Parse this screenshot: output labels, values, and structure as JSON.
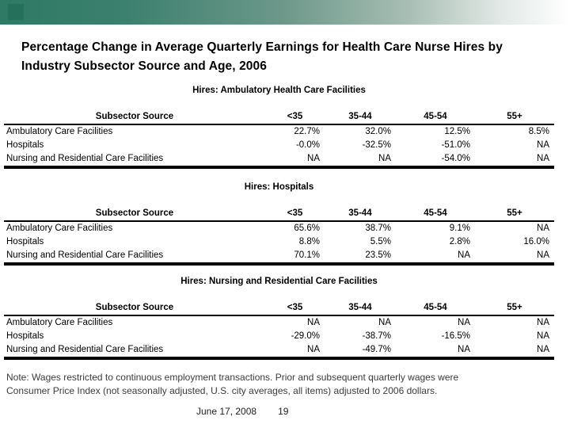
{
  "slide": {
    "title": "Percentage Change in Average Quarterly Earnings for Health Care Nurse Hires by Industry Subsector Source and Age, 2006",
    "note_lines": [
      "Note: Wages restricted to continuous employment transactions. Prior and subsequent quarterly wages were",
      "Consumer Price Index (not seasonally adjusted, U.S. city averages, all items) adjusted to 2006 dollars."
    ],
    "footer_date": "June 17, 2008",
    "footer_page": "19"
  },
  "colors": {
    "band_gradient_start": "#2e7a64",
    "band_gradient_end": "#ffffff",
    "accent_square": "#25705a",
    "text": "#000000"
  },
  "tables": [
    {
      "caption": "Hires: Ambulatory Health Care Facilities",
      "headers": [
        "Subsector Source",
        "<35",
        "35-44",
        "45-54",
        "55+"
      ],
      "rows": [
        [
          "Ambulatory Care Facilities",
          "22.7%",
          "32.0%",
          "12.5%",
          "8.5%"
        ],
        [
          "Hospitals",
          "-0.0%",
          "-32.5%",
          "-51.0%",
          "NA"
        ],
        [
          "Nursing and Residential Care Facilities",
          "NA",
          "NA",
          "-54.0%",
          "NA"
        ]
      ]
    },
    {
      "caption": "Hires: Hospitals",
      "headers": [
        "Subsector Source",
        "<35",
        "35-44",
        "45-54",
        "55+"
      ],
      "rows": [
        [
          "Ambulatory Care Facilities",
          "65.6%",
          "38.7%",
          "9.1%",
          "NA"
        ],
        [
          "Hospitals",
          "8.8%",
          "5.5%",
          "2.8%",
          "16.0%"
        ],
        [
          "Nursing and Residential Care Facilities",
          "70.1%",
          "23.5%",
          "NA",
          "NA"
        ]
      ]
    },
    {
      "caption": "Hires: Nursing and Residential Care Facilities",
      "headers": [
        "Subsector Source",
        "<35",
        "35-44",
        "45-54",
        "55+"
      ],
      "rows": [
        [
          "Ambulatory Care Facilities",
          "NA",
          "NA",
          "NA",
          "NA"
        ],
        [
          "Hospitals",
          "-29.0%",
          "-38.7%",
          "-16.5%",
          "NA"
        ],
        [
          "Nursing and Residential Care Facilities",
          "NA",
          "-49.7%",
          "NA",
          "NA"
        ]
      ]
    }
  ]
}
